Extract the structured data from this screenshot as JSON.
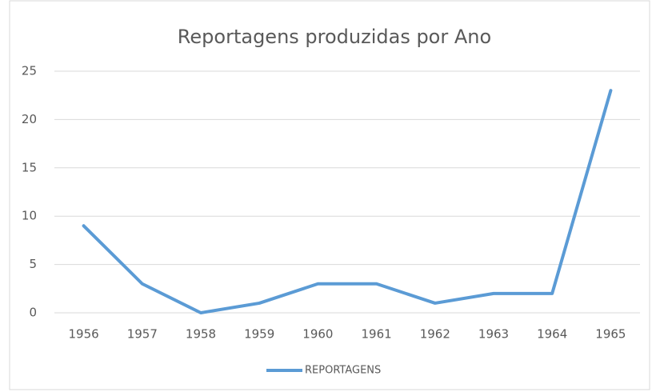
{
  "chart_data": {
    "type": "line",
    "title": "Reportagens produzidas por Ano",
    "categories": [
      "1956",
      "1957",
      "1958",
      "1959",
      "1960",
      "1961",
      "1962",
      "1963",
      "1964",
      "1965"
    ],
    "series": [
      {
        "name": "REPORTAGENS",
        "color": "#5b9bd5",
        "values": [
          9,
          3,
          0,
          1,
          3,
          3,
          1,
          2,
          2,
          23
        ]
      }
    ],
    "ylim": [
      0,
      25
    ],
    "yticks": [
      0,
      5,
      10,
      15,
      20,
      25
    ],
    "grid": true,
    "legend": "bottom"
  }
}
